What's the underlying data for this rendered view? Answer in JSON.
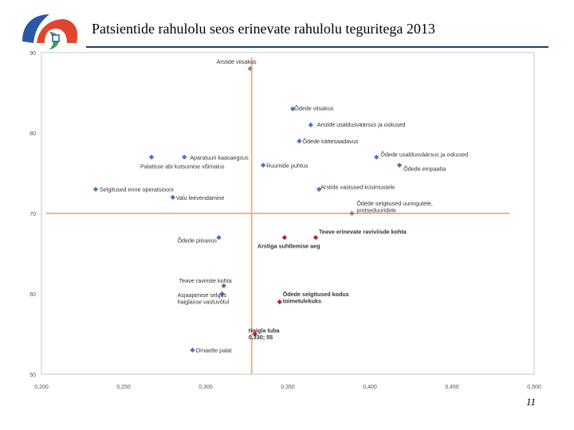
{
  "header": {
    "title": "Patsientide rahulolu seos erinevate rahulolu teguritega 2013"
  },
  "footer": {
    "page_number": "11"
  },
  "logo": {
    "icon": "hospital-logo-icon",
    "colors": [
      "#2a58a6",
      "#e0462f",
      "#3aa15a"
    ]
  },
  "chart_data": {
    "type": "scatter",
    "title": "Patsientide rahulolu seos erinevate rahulolu teguritega 2013",
    "xlim": [
      0.2,
      0.5
    ],
    "ylim": [
      50,
      90
    ],
    "x_ticks": [
      "0,200",
      "0,250",
      "0,300",
      "0,350",
      "0,400",
      "0,450",
      "0,500"
    ],
    "y_ticks": [
      "90",
      "80",
      "70",
      "60",
      "50"
    ],
    "reference_lines": {
      "x": 0.328,
      "y": 70
    },
    "colors": {
      "blue": "#4a78b5",
      "red": "#b02a2a",
      "grey": "#8a8a8a",
      "refline": "#f0b582",
      "frame": "#c8c8c8",
      "tick": "#555555"
    },
    "points": [
      {
        "x": 0.327,
        "y": 88,
        "label": "Arstide viisakus",
        "color": "grey"
      },
      {
        "x": 0.353,
        "y": 83,
        "label": "Õdede viisakus",
        "color": "blue"
      },
      {
        "x": 0.364,
        "y": 81,
        "label": "Arstide usaldusväärsus ja oskused",
        "color": "blue"
      },
      {
        "x": 0.357,
        "y": 79,
        "label": "Õdede kättesaadavus",
        "color": "blue"
      },
      {
        "x": 0.267,
        "y": 77,
        "label": "Palatisse abi kutsumise võimalus",
        "color": "blue"
      },
      {
        "x": 0.287,
        "y": 77,
        "label": "Aparatuuri kaasaegsus",
        "color": "blue"
      },
      {
        "x": 0.335,
        "y": 76,
        "label": "Ruumide puhtus",
        "color": "blue"
      },
      {
        "x": 0.404,
        "y": 77,
        "label": "Õdede usaldusväärsus ja oskused",
        "color": "blue"
      },
      {
        "x": 0.418,
        "y": 76,
        "label": "Õdede empaatia",
        "color": "blue"
      },
      {
        "x": 0.233,
        "y": 73,
        "label": "Selgitused enne operatsiooni",
        "color": "blue"
      },
      {
        "x": 0.28,
        "y": 72,
        "label": "Valu leevendamine",
        "color": "blue"
      },
      {
        "x": 0.369,
        "y": 73,
        "label": "Arstide vastused küsimustele",
        "color": "blue"
      },
      {
        "x": 0.389,
        "y": 70,
        "label": "Õdede selgitused uuringutele, protseduuridele",
        "color": "grey"
      },
      {
        "x": 0.308,
        "y": 67,
        "label": "Õdede piisavus",
        "color": "blue"
      },
      {
        "x": 0.348,
        "y": 67,
        "label": "Arstiga suhtlemise aeg",
        "color": "red"
      },
      {
        "x": 0.367,
        "y": 67,
        "label": "Teave erinevate raviviisde kohta",
        "color": "red"
      },
      {
        "x": 0.311,
        "y": 61,
        "label": "Teave ravimite kohta",
        "color": "blue"
      },
      {
        "x": 0.31,
        "y": 60,
        "label": "Asjaajamise selgus haiglasse vastuvõtul",
        "color": "blue"
      },
      {
        "x": 0.345,
        "y": 59,
        "label": "Õdede selgitused kodus toimetulekuks",
        "color": "red"
      },
      {
        "x": 0.33,
        "y": 55,
        "label": "Haigla tuba 0,330; 55",
        "color": "red"
      },
      {
        "x": 0.292,
        "y": 53,
        "label": "Omaette palat",
        "color": "blue"
      }
    ]
  }
}
